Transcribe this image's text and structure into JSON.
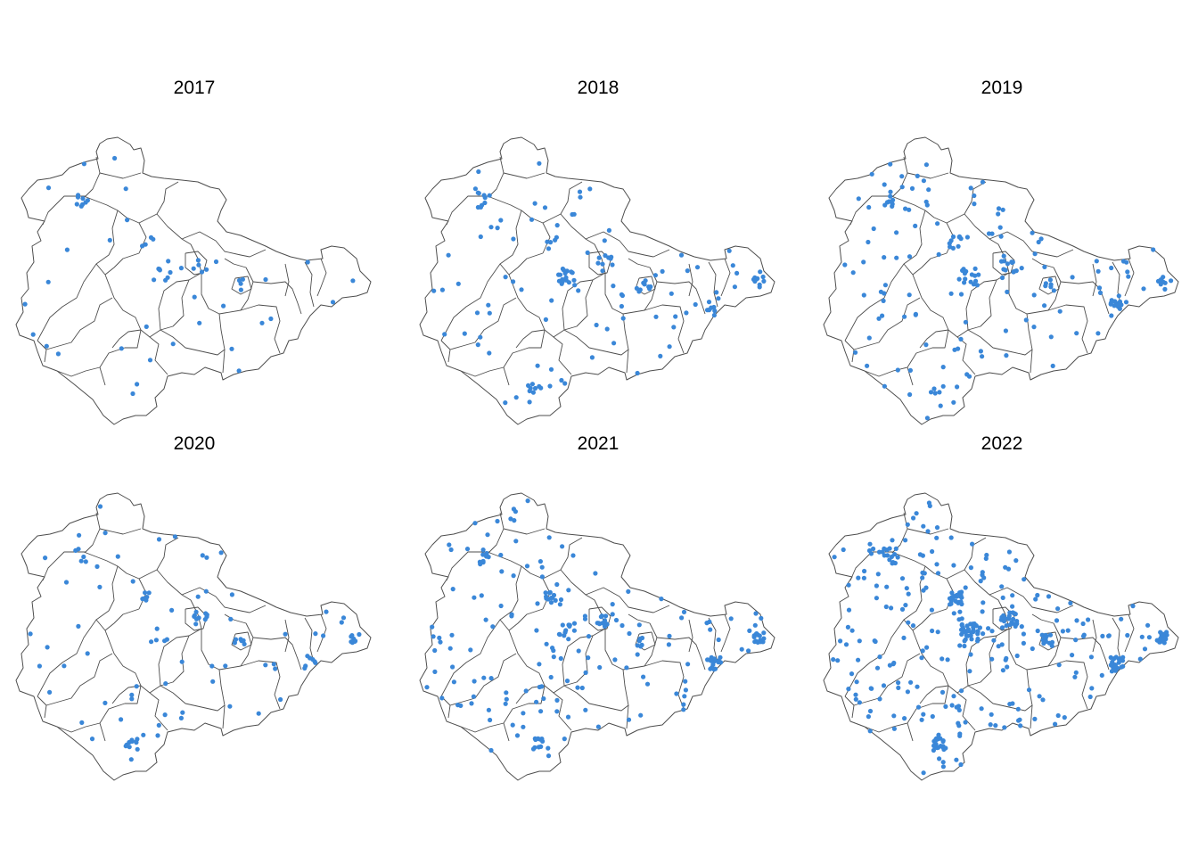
{
  "figure": {
    "region": "Thüringen",
    "panel_count": 6,
    "point_color": "#3a87d8",
    "border_color": "#4d4d4d"
  },
  "panels": [
    {
      "title": "2017",
      "density": 60
    },
    {
      "title": "2018",
      "density": 150
    },
    {
      "title": "2019",
      "density": 185
    },
    {
      "title": "2020",
      "density": 115
    },
    {
      "title": "2021",
      "density": 230
    },
    {
      "title": "2022",
      "density": 380
    }
  ]
}
